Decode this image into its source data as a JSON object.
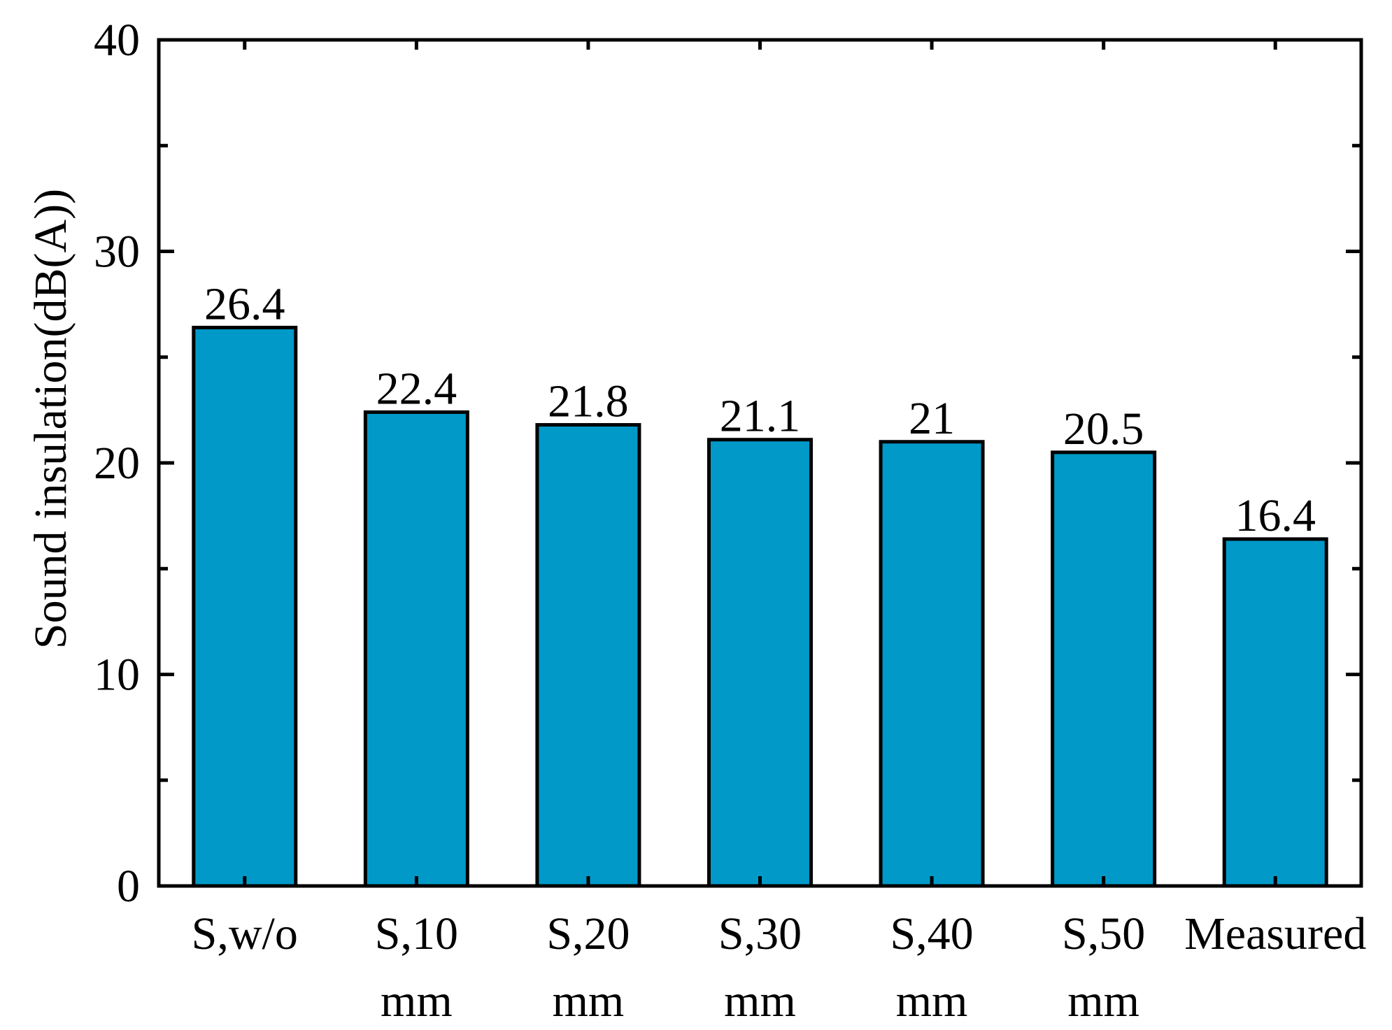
{
  "chart_data": {
    "type": "bar",
    "categories": [
      [
        "S,w/o"
      ],
      [
        "S,10",
        "mm"
      ],
      [
        "S,20",
        "mm"
      ],
      [
        "S,30",
        "mm"
      ],
      [
        "S,40",
        "mm"
      ],
      [
        "S,50",
        "mm"
      ],
      [
        "Measured"
      ]
    ],
    "values": [
      26.4,
      22.4,
      21.8,
      21.1,
      21,
      20.5,
      16.4
    ],
    "data_labels": [
      "26.4",
      "22.4",
      "21.8",
      "21.1",
      "21",
      "20.5",
      "16.4"
    ],
    "title": "",
    "xlabel": "",
    "ylabel": "Sound insulation(dB(A))",
    "ylim": [
      0,
      40
    ],
    "yticks": [
      "0",
      "10",
      "20",
      "30",
      "40"
    ],
    "bar_color": "#0099c8",
    "bar_edge_color": "#000000",
    "grid": false,
    "legend": "none"
  }
}
